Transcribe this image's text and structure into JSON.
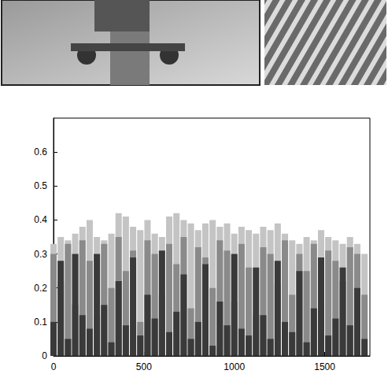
{
  "chart_data": {
    "type": "bar",
    "x": [
      0,
      40,
      80,
      120,
      160,
      200,
      240,
      280,
      320,
      360,
      400,
      440,
      480,
      520,
      560,
      600,
      640,
      680,
      720,
      760,
      800,
      840,
      880,
      920,
      960,
      1000,
      1040,
      1080,
      1120,
      1160,
      1200,
      1240,
      1280,
      1320,
      1360,
      1400,
      1440,
      1480,
      1520,
      1560,
      1600,
      1640,
      1680,
      1720
    ],
    "series": [
      {
        "color": "#c4c4c4",
        "values": [
          0.33,
          0.35,
          0.34,
          0.36,
          0.38,
          0.4,
          0.35,
          0.34,
          0.36,
          0.42,
          0.41,
          0.38,
          0.37,
          0.4,
          0.36,
          0.35,
          0.41,
          0.42,
          0.4,
          0.39,
          0.37,
          0.39,
          0.4,
          0.38,
          0.39,
          0.36,
          0.38,
          0.37,
          0.36,
          0.38,
          0.37,
          0.39,
          0.36,
          0.34,
          0.33,
          0.35,
          0.34,
          0.37,
          0.35,
          0.34,
          0.33,
          0.35,
          0.33,
          0.3
        ]
      },
      {
        "color": "#8a8a8a",
        "values": [
          0.3,
          0.22,
          0.33,
          0.15,
          0.34,
          0.28,
          0.12,
          0.33,
          0.2,
          0.35,
          0.25,
          0.31,
          0.1,
          0.34,
          0.3,
          0.18,
          0.33,
          0.27,
          0.35,
          0.14,
          0.32,
          0.29,
          0.2,
          0.34,
          0.31,
          0.16,
          0.33,
          0.26,
          0.12,
          0.32,
          0.3,
          0.21,
          0.34,
          0.18,
          0.3,
          0.25,
          0.33,
          0.15,
          0.31,
          0.28,
          0.22,
          0.32,
          0.3,
          0.18
        ]
      },
      {
        "color": "#3a3a3a",
        "values": [
          0.1,
          0.28,
          0.05,
          0.3,
          0.12,
          0.08,
          0.3,
          0.15,
          0.04,
          0.22,
          0.09,
          0.29,
          0.06,
          0.18,
          0.11,
          0.31,
          0.07,
          0.13,
          0.24,
          0.05,
          0.1,
          0.27,
          0.03,
          0.16,
          0.09,
          0.3,
          0.08,
          0.06,
          0.26,
          0.12,
          0.05,
          0.28,
          0.1,
          0.07,
          0.25,
          0.04,
          0.14,
          0.29,
          0.06,
          0.11,
          0.26,
          0.09,
          0.2,
          0.05
        ]
      }
    ],
    "xlim": [
      0,
      1750
    ],
    "xticks": [
      0,
      500,
      1000,
      1500
    ],
    "ylim": [
      0,
      0.7
    ],
    "yticks": [
      0,
      0.1,
      0.2,
      0.3,
      0.4,
      0.5,
      0.6
    ],
    "grid": false
  }
}
